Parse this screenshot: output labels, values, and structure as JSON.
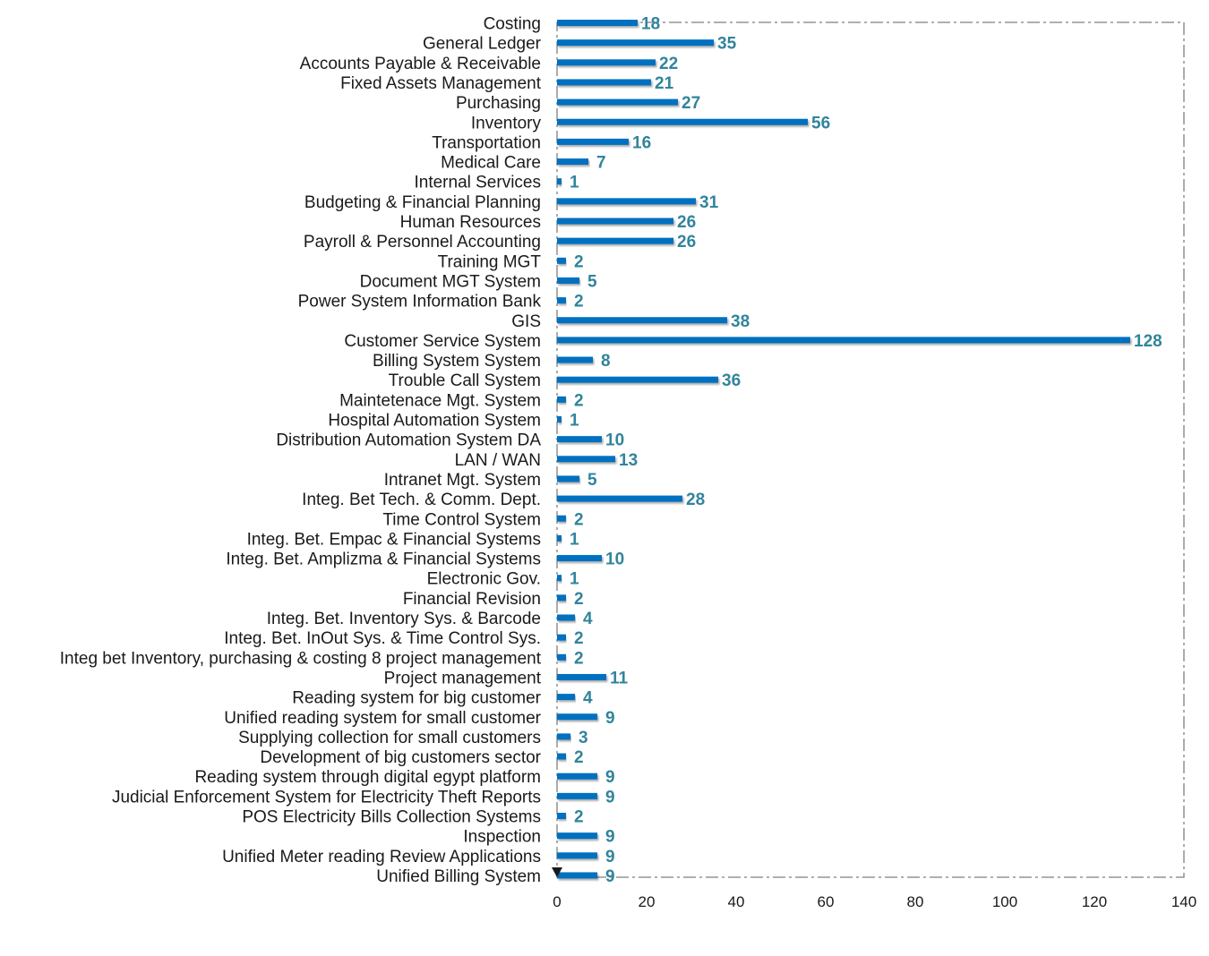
{
  "chart_data": {
    "type": "bar",
    "orientation": "horizontal",
    "categories": [
      "Costing",
      "General Ledger",
      "Accounts Payable & Receivable",
      "Fixed Assets Management",
      "Purchasing",
      "Inventory",
      "Transportation",
      "Medical Care",
      "Internal Services",
      "Budgeting & Financial Planning",
      "Human Resources",
      "Payroll & Personnel Accounting",
      "Training MGT",
      "Document MGT System",
      "Power System Information Bank",
      "GIS",
      "Customer Service System",
      "Billing System System",
      "Trouble Call System",
      "Maintetenace Mgt. System",
      "Hospital Automation System",
      "Distribution Automation System DA",
      "LAN / WAN",
      "Intranet Mgt. System",
      "Integ. Bet Tech. & Comm. Dept.",
      "Time Control System",
      "Integ. Bet. Empac & Financial Systems",
      "Integ. Bet. Amplizma & Financial Systems",
      "Electronic Gov.",
      "Financial Revision",
      "Integ. Bet. Inventory Sys. & Barcode",
      "Integ. Bet. InOut Sys. & Time Control Sys.",
      "Integ bet Inventory, purchasing & costing 8 project management",
      "Project management",
      "Reading system for big customer",
      "Unified reading system for small customer",
      "Supplying collection for small customers",
      "Development of big customers sector",
      "Reading system through digital egypt platform",
      "Judicial Enforcement System for Electricity Theft Reports",
      "POS Electricity Bills Collection Systems",
      "Inspection",
      "Unified Meter reading Review Applications",
      "Unified Billing System"
    ],
    "values": [
      18,
      35,
      22,
      21,
      27,
      56,
      16,
      7,
      1,
      31,
      26,
      26,
      2,
      5,
      2,
      38,
      128,
      8,
      36,
      2,
      1,
      10,
      13,
      5,
      28,
      2,
      1,
      10,
      1,
      2,
      4,
      2,
      2,
      11,
      4,
      9,
      3,
      2,
      9,
      9,
      2,
      9,
      9,
      9
    ],
    "value_labels": [
      "18",
      "35",
      "22",
      "21",
      "27",
      "56",
      "16",
      "7",
      "1",
      "31",
      "26",
      "26",
      "2",
      "5",
      "2",
      "38",
      "128",
      "8",
      "36",
      "2",
      "1",
      "10",
      "13",
      "5",
      "28",
      "2",
      "1",
      "10",
      "1",
      "2",
      "4",
      "2",
      "2",
      "11",
      "4",
      "9",
      "3",
      "2",
      "9",
      "9",
      "2",
      "9",
      "9",
      "9"
    ],
    "xlim": [
      0,
      140
    ],
    "xticks": [
      "0",
      "20",
      "40",
      "60",
      "80",
      "100",
      "120",
      "140"
    ],
    "title": "",
    "xlabel": "",
    "ylabel": "",
    "grid": false,
    "legend": "none",
    "colors": {
      "bar": "#0070c0",
      "value_label": "#31849b",
      "text": "#1a1a1a",
      "frame": "#7f7f7f"
    }
  }
}
